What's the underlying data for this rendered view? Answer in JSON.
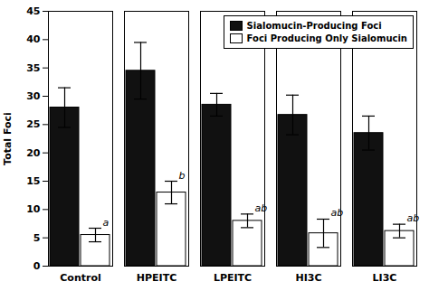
{
  "chart_data": {
    "type": "bar",
    "categories": [
      "Control",
      "HPEITC",
      "LPEITC",
      "HI3C",
      "LI3C"
    ],
    "series": [
      {
        "name": "Sialomucin-Producing Foci",
        "color": "#111111",
        "values": [
          28.0,
          34.5,
          28.5,
          26.7,
          23.5
        ],
        "errors": [
          3.5,
          5.0,
          2.0,
          3.5,
          3.0
        ]
      },
      {
        "name": "Foci Producing Only Sialomucin",
        "color": "#ffffff",
        "values": [
          5.5,
          13.0,
          8.0,
          5.8,
          6.2
        ],
        "errors": [
          1.2,
          2.0,
          1.2,
          2.5,
          1.2
        ],
        "annotations": [
          "a",
          "b",
          "ab",
          "ab",
          "ab"
        ]
      }
    ],
    "ylabel": "Total Foci",
    "ylim": [
      0,
      45
    ],
    "yticks": [
      0,
      5,
      10,
      15,
      20,
      25,
      30,
      35,
      40,
      45
    ],
    "grid": false,
    "legend": "upper right"
  }
}
